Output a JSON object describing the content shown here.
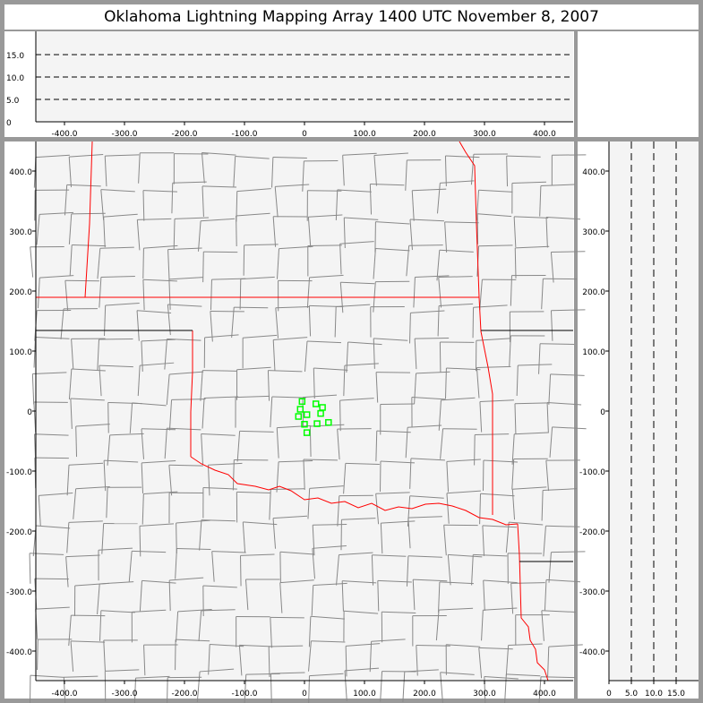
{
  "title": "Oklahoma Lightning Mapping Array   1400 UTC  November 8, 2007",
  "top_panel": {
    "x_ticks": [
      "-400.0",
      "-300.0",
      "-200.0",
      "-100.0",
      "0",
      "100.0",
      "200.0",
      "300.0",
      "400.0"
    ],
    "y_ticks": [
      "0",
      "5.0",
      "10.0",
      "15.0"
    ],
    "dashed_levels": [
      5,
      10,
      15
    ]
  },
  "map_panel": {
    "x_ticks": [
      "-400.0",
      "-300.0",
      "-200.0",
      "-100.0",
      "0",
      "100.0",
      "200.0",
      "300.0",
      "400.0"
    ],
    "y_ticks": [
      "400.0",
      "300.0",
      "200.0",
      "100.0",
      "0",
      "-100.0",
      "-200.0",
      "-300.0",
      "-400.0"
    ],
    "state_border_color": "#ff0000",
    "county_line_color": "#888888",
    "station_color": "#00ff00",
    "stations": [
      [
        -4,
        16
      ],
      [
        19,
        12
      ],
      [
        30,
        6
      ],
      [
        -7,
        3
      ],
      [
        4,
        -6
      ],
      [
        -10,
        -9
      ],
      [
        27,
        -4
      ],
      [
        0,
        -22
      ],
      [
        21,
        -21
      ],
      [
        40,
        -19
      ],
      [
        4,
        -36
      ]
    ]
  },
  "side_panel": {
    "x_ticks": [
      "0",
      "5.0",
      "10.0",
      "15.0"
    ],
    "y_ticks": [
      "400.0",
      "300.0",
      "200.0",
      "100.0",
      "0",
      "-100.0",
      "-200.0",
      "-300.0",
      "-400.0"
    ],
    "dashed_levels": [
      5,
      10,
      15
    ]
  }
}
